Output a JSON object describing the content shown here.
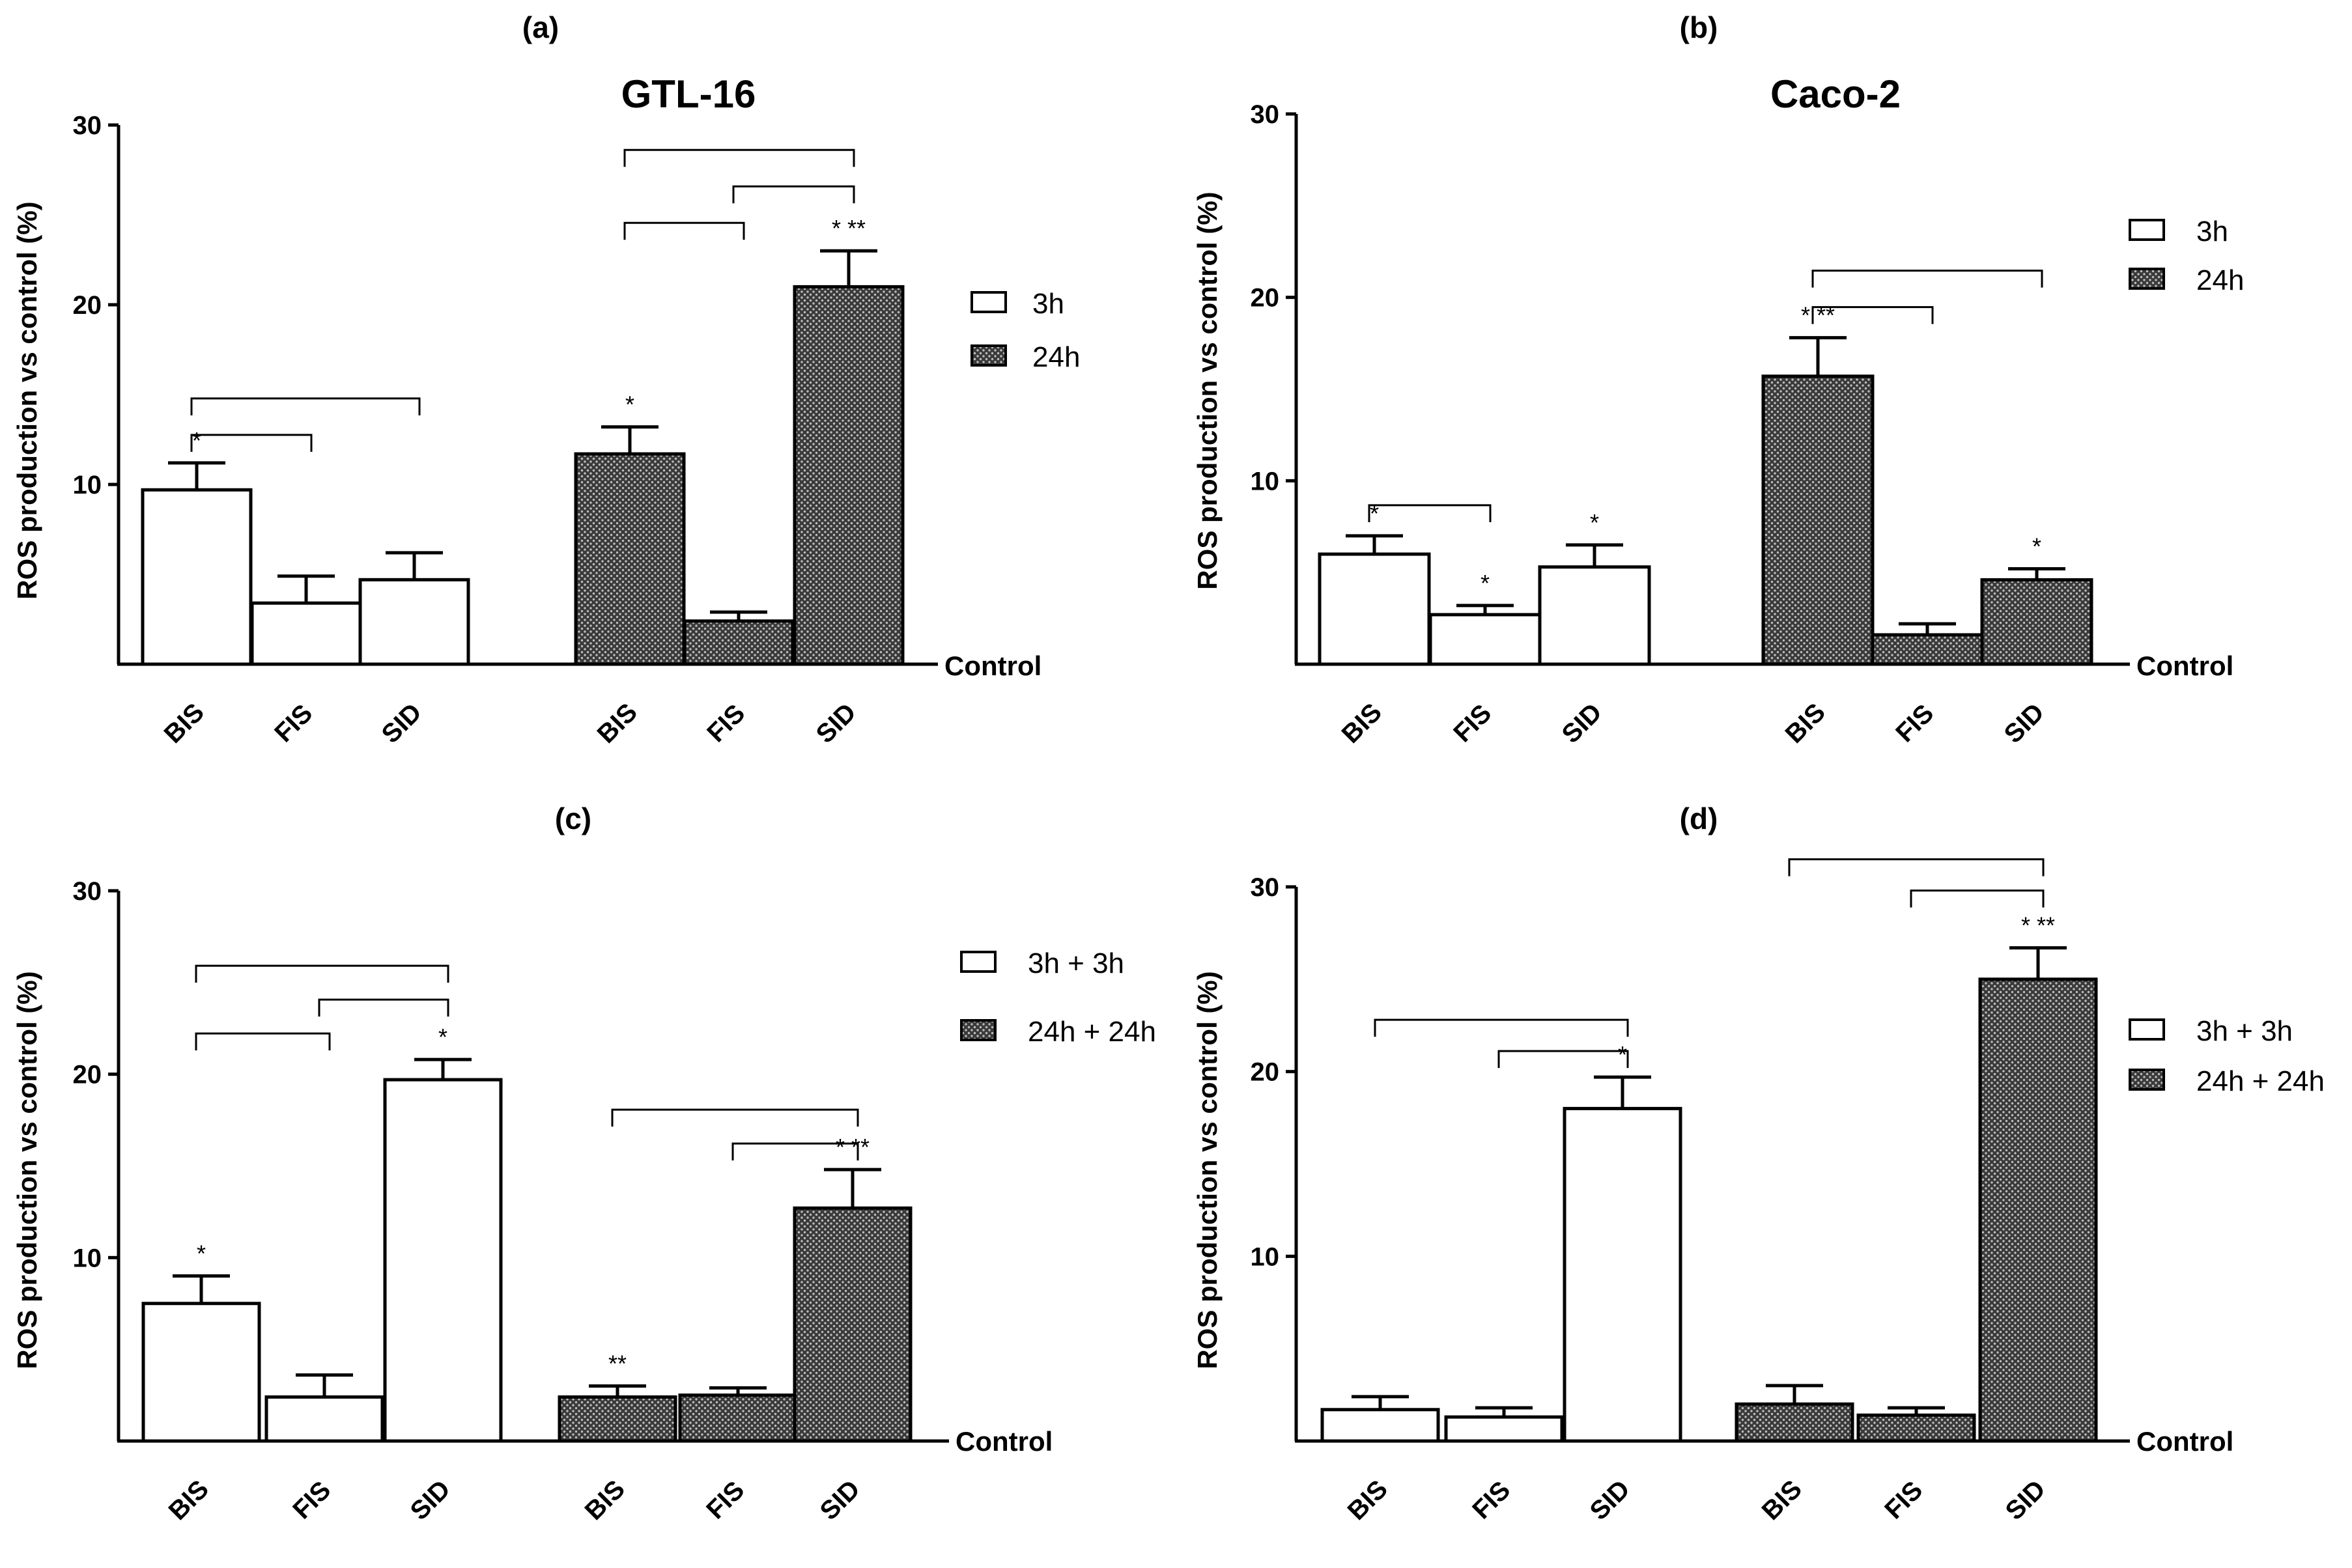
{
  "colors": {
    "axis": "#000000",
    "bar_3h": "#ffffff",
    "bar_24h_fill": "#3a3a3a",
    "bar_24h_dots": "#bdbdbd"
  },
  "chart_data": [
    {
      "type": "bar",
      "panel_label": "(a)",
      "title": "GTL-16",
      "ylabel": "ROS production vs control (%)",
      "ylim": [
        0,
        30
      ],
      "yticks": [
        10,
        20,
        30
      ],
      "baseline_label": "Control",
      "categories": [
        "BIS",
        "FIS",
        "SID"
      ],
      "series": [
        {
          "name": "3h",
          "pattern": "open",
          "values": [
            9.7,
            3.4,
            4.7
          ],
          "errors": [
            1.5,
            1.5,
            1.5
          ],
          "annotations": [
            "*",
            "",
            ""
          ]
        },
        {
          "name": "24h",
          "pattern": "hatched",
          "values": [
            11.7,
            2.4,
            21.0
          ],
          "errors": [
            1.5,
            0.5,
            2.0
          ],
          "annotations": [
            "*",
            "",
            "* **"
          ]
        }
      ],
      "brackets": [
        {
          "series": 0,
          "from": 0,
          "to": 2,
          "level": 2
        },
        {
          "series": 0,
          "from": 0,
          "to": 1,
          "level": 1
        },
        {
          "series": 1,
          "from": 0,
          "to": 2,
          "level": 3
        },
        {
          "series": 1,
          "from": 1,
          "to": 2,
          "level": 2
        },
        {
          "series": 1,
          "from": 0,
          "to": 1,
          "level": 1
        }
      ]
    },
    {
      "type": "bar",
      "panel_label": "(b)",
      "title": "Caco-2",
      "ylabel": "ROS production vs control (%)",
      "ylim": [
        0,
        30
      ],
      "yticks": [
        10,
        20,
        30
      ],
      "baseline_label": "Control",
      "categories": [
        "BIS",
        "FIS",
        "SID"
      ],
      "series": [
        {
          "name": "3h",
          "pattern": "open",
          "values": [
            6.0,
            2.7,
            5.3
          ],
          "errors": [
            1.0,
            0.5,
            1.2
          ],
          "annotations": [
            "*",
            "*",
            "*"
          ]
        },
        {
          "name": "24h",
          "pattern": "hatched",
          "values": [
            15.7,
            1.6,
            4.6
          ],
          "errors": [
            2.1,
            0.6,
            0.6
          ],
          "annotations": [
            "* **",
            "",
            "*"
          ]
        }
      ],
      "brackets": [
        {
          "series": 0,
          "from": 0,
          "to": 1,
          "level": 1
        },
        {
          "series": 1,
          "from": 0,
          "to": 2,
          "level": 2
        },
        {
          "series": 1,
          "from": 0,
          "to": 1,
          "level": 1
        }
      ]
    },
    {
      "type": "bar",
      "panel_label": "(c)",
      "title": "",
      "ylabel": "ROS production vs control (%)",
      "ylim": [
        0,
        30
      ],
      "yticks": [
        10,
        20,
        30
      ],
      "baseline_label": "Control",
      "categories": [
        "BIS",
        "FIS",
        "SID"
      ],
      "series": [
        {
          "name": "3h + 3h",
          "pattern": "open",
          "values": [
            7.5,
            2.4,
            19.7
          ],
          "errors": [
            1.5,
            1.2,
            1.1
          ],
          "annotations": [
            "*",
            "",
            "*"
          ]
        },
        {
          "name": "24h + 24h",
          "pattern": "hatched",
          "values": [
            2.4,
            2.5,
            12.7
          ],
          "errors": [
            0.6,
            0.4,
            2.1
          ],
          "annotations": [
            "**",
            "",
            "* **"
          ]
        }
      ],
      "brackets": [
        {
          "series": 0,
          "from": 0,
          "to": 2,
          "level": 3
        },
        {
          "series": 0,
          "from": 1,
          "to": 2,
          "level": 2
        },
        {
          "series": 0,
          "from": 0,
          "to": 1,
          "level": 1
        },
        {
          "series": 1,
          "from": 0,
          "to": 2,
          "level": 2
        },
        {
          "series": 1,
          "from": 1,
          "to": 2,
          "level": 1
        }
      ]
    },
    {
      "type": "bar",
      "panel_label": "(d)",
      "title": "",
      "ylabel": "ROS production vs control (%)",
      "ylim": [
        0,
        30
      ],
      "yticks": [
        10,
        20,
        30
      ],
      "baseline_label": "Control",
      "categories": [
        "BIS",
        "FIS",
        "SID"
      ],
      "series": [
        {
          "name": "3h + 3h",
          "pattern": "open",
          "values": [
            1.7,
            1.3,
            18.0
          ],
          "errors": [
            0.7,
            0.5,
            1.7
          ],
          "annotations": [
            "",
            "",
            "*"
          ]
        },
        {
          "name": "24h + 24h",
          "pattern": "hatched",
          "values": [
            2.0,
            1.4,
            25.0
          ],
          "errors": [
            1.0,
            0.4,
            1.7
          ],
          "annotations": [
            "",
            "",
            "* **"
          ]
        }
      ],
      "brackets": [
        {
          "series": 0,
          "from": 0,
          "to": 2,
          "level": 2
        },
        {
          "series": 0,
          "from": 1,
          "to": 2,
          "level": 1
        },
        {
          "series": 1,
          "from": 0,
          "to": 2,
          "level": 3
        },
        {
          "series": 1,
          "from": 1,
          "to": 2,
          "level": 2
        }
      ]
    }
  ]
}
